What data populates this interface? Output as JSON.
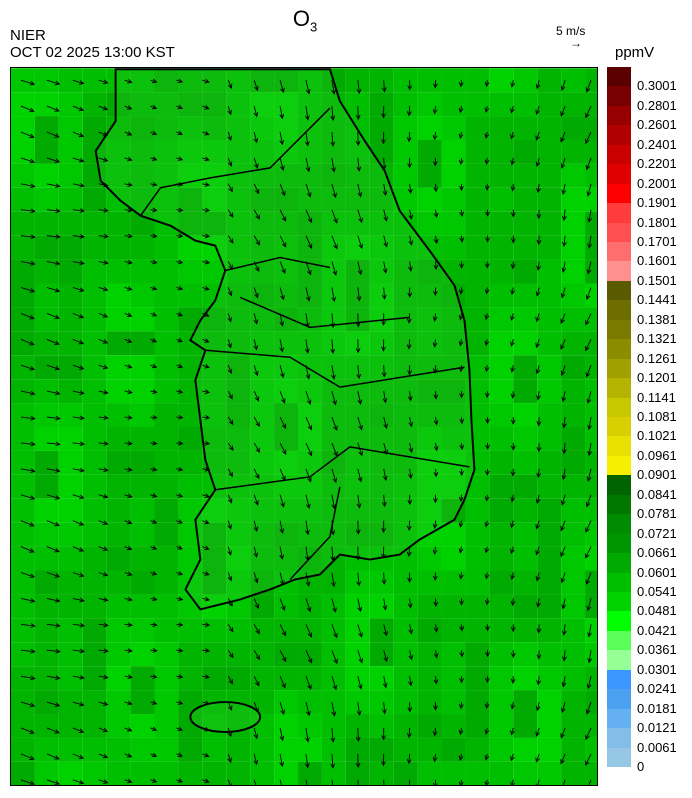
{
  "header": {
    "title": "O",
    "title_sub": "3",
    "org": "NIER",
    "datetime": "OCT 02 2025 13:00 KST",
    "wind_scale_label": "5 m/s",
    "wind_scale_icon": "arrow-right-icon"
  },
  "colorbar": {
    "unit": "ppmV",
    "labels": [
      "0.3001",
      "0.2801",
      "0.2601",
      "0.2401",
      "0.2201",
      "0.2001",
      "0.1901",
      "0.1801",
      "0.1701",
      "0.1601",
      "0.1501",
      "0.1441",
      "0.1381",
      "0.1321",
      "0.1261",
      "0.1201",
      "0.1141",
      "0.1081",
      "0.1021",
      "0.0961",
      "0.0901",
      "0.0841",
      "0.0781",
      "0.0721",
      "0.0661",
      "0.0601",
      "0.0541",
      "0.0481",
      "0.0421",
      "0.0361",
      "0.0301",
      "0.0241",
      "0.0181",
      "0.0121",
      "0.0061",
      "0"
    ],
    "colors": [
      "#5a0000",
      "#780000",
      "#960000",
      "#b00000",
      "#c80000",
      "#e00000",
      "#ff0000",
      "#ff3c3c",
      "#ff5050",
      "#ff6e6e",
      "#ff9090",
      "#5a5a00",
      "#6e6e00",
      "#7a7a00",
      "#8c8c00",
      "#a0a000",
      "#b4b400",
      "#c8c800",
      "#d8d000",
      "#e8e000",
      "#f5f000",
      "#006400",
      "#007800",
      "#008c00",
      "#009600",
      "#00aa00",
      "#00be00",
      "#00d200",
      "#00ff00",
      "#5aff5a",
      "#96ff96",
      "#3c96ff",
      "#4ba0f0",
      "#64b0f0",
      "#82bee8",
      "#96c8e6"
    ]
  },
  "map": {
    "dominant_color": "#00be00",
    "land_outline_color": "#000000",
    "boundary_color": "#bbbbbb"
  }
}
